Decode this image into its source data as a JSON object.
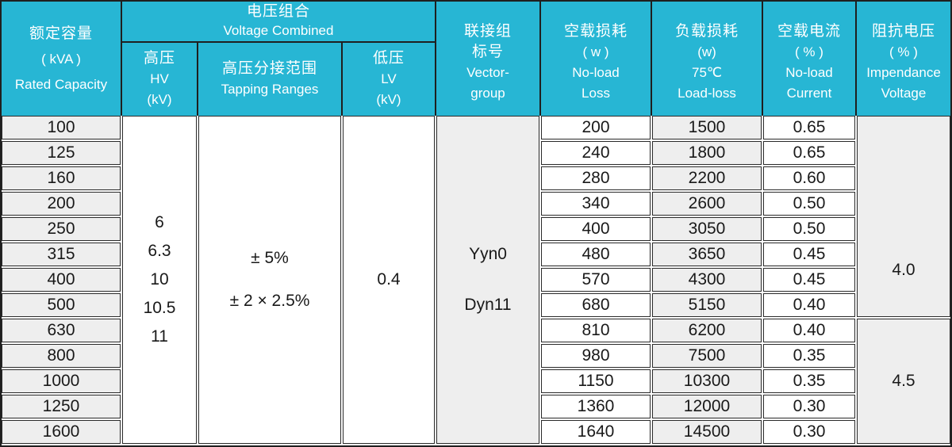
{
  "table": {
    "colors": {
      "header_bg": "#27b6d4",
      "alt_cell_bg": "#eeeeee",
      "border": "#1f1f1f",
      "header_text": "#ffffff",
      "cell_text": "#191919"
    },
    "header": {
      "rated_capacity": {
        "zh": "额定容量",
        "unit": "( kVA )",
        "en": "Rated Capacity"
      },
      "voltage_combined": {
        "zh": "电压组合",
        "en": "Voltage Combined"
      },
      "hv": {
        "zh": "高压",
        "en": "HV",
        "unit": "(kV)"
      },
      "tapping": {
        "zh": "高压分接范围",
        "en": "Tapping Ranges"
      },
      "lv": {
        "zh": "低压",
        "en": "LV",
        "unit": "(kV)"
      },
      "vector_group": {
        "zh1": "联接组",
        "zh2": "标号",
        "en1": "Vector-",
        "en2": "group"
      },
      "no_load_loss": {
        "zh": "空载损耗",
        "unit": "( w )",
        "en1": "No-load",
        "en2": "Loss"
      },
      "load_loss": {
        "zh": "负载损耗",
        "unit": "(w)",
        "temp": "75℃",
        "en": "Load-loss"
      },
      "no_load_current": {
        "zh": "空载电流",
        "unit": "( % )",
        "en1": "No-load",
        "en2": "Current"
      },
      "impedance": {
        "zh": "阻抗电压",
        "unit": "( % )",
        "en1": "Impendance",
        "en2": "Voltage"
      }
    },
    "merged": {
      "hv_values": [
        "6",
        "6.3",
        "10",
        "10.5",
        "11"
      ],
      "tapping_values": [
        "± 5%",
        "± 2 × 2.5%"
      ],
      "lv_value": "0.4",
      "vector_values": [
        "Yyn0",
        "Dyn11"
      ],
      "impedance_values": [
        "4.0",
        "4.5"
      ]
    },
    "rows": [
      {
        "capacity": "100",
        "no_load_loss": "200",
        "load_loss": "1500",
        "no_load_current": "0.65"
      },
      {
        "capacity": "125",
        "no_load_loss": "240",
        "load_loss": "1800",
        "no_load_current": "0.65"
      },
      {
        "capacity": "160",
        "no_load_loss": "280",
        "load_loss": "2200",
        "no_load_current": "0.60"
      },
      {
        "capacity": "200",
        "no_load_loss": "340",
        "load_loss": "2600",
        "no_load_current": "0.50"
      },
      {
        "capacity": "250",
        "no_load_loss": "400",
        "load_loss": "3050",
        "no_load_current": "0.50"
      },
      {
        "capacity": "315",
        "no_load_loss": "480",
        "load_loss": "3650",
        "no_load_current": "0.45"
      },
      {
        "capacity": "400",
        "no_load_loss": "570",
        "load_loss": "4300",
        "no_load_current": "0.45"
      },
      {
        "capacity": "500",
        "no_load_loss": "680",
        "load_loss": "5150",
        "no_load_current": "0.40"
      },
      {
        "capacity": "630",
        "no_load_loss": "810",
        "load_loss": "6200",
        "no_load_current": "0.40"
      },
      {
        "capacity": "800",
        "no_load_loss": "980",
        "load_loss": "7500",
        "no_load_current": "0.35"
      },
      {
        "capacity": "1000",
        "no_load_loss": "1150",
        "load_loss": "10300",
        "no_load_current": "0.35"
      },
      {
        "capacity": "1250",
        "no_load_loss": "1360",
        "load_loss": "12000",
        "no_load_current": "0.30"
      },
      {
        "capacity": "1600",
        "no_load_loss": "1640",
        "load_loss": "14500",
        "no_load_current": "0.30"
      }
    ]
  }
}
